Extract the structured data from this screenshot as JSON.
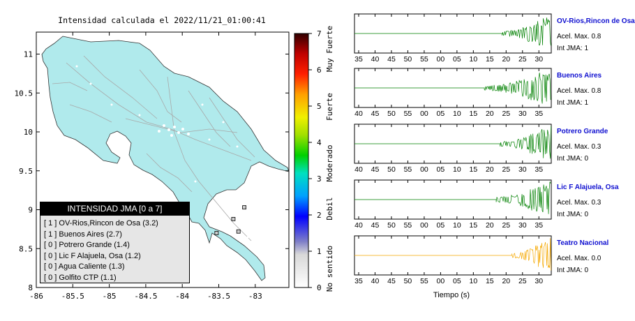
{
  "map": {
    "title": "Intensidad calculada el 2022/11/21_01:00:41",
    "x_ticks": [
      "-86",
      "-85.5",
      "-85",
      "-84.5",
      "-84",
      "-83.5",
      "-83"
    ],
    "y_ticks": [
      "11",
      "10.5",
      "10",
      "9.5",
      "9",
      "8.5",
      "8"
    ],
    "land_color": "#b0eaec",
    "stations": [
      {
        "lon": -83.3,
        "lat": 8.88
      },
      {
        "lon": -83.15,
        "lat": 9.03
      },
      {
        "lon": -83.23,
        "lat": 8.72
      },
      {
        "lon": -83.53,
        "lat": 8.7
      }
    ]
  },
  "colorbar": {
    "ticks": [
      "0",
      "1",
      "2",
      "3",
      "4",
      "5",
      "6",
      "7"
    ],
    "labels": [
      "No sentido",
      "Debil",
      "Moderado",
      "Fuerte",
      "Muy Fuerte"
    ]
  },
  "legend": {
    "header": "INTENSIDAD JMA [0 a 7]",
    "rows": [
      "[ 1 ]  OV-Rios,Rincon de Osa (3.2)",
      "[ 1 ]  Buenos Aires (2.7)",
      "[ 0 ]  Potrero Grande (1.4)",
      "[ 0 ]  Lic F Alajuela, Osa (1.2)",
      "[ 0 ]  Agua Caliente (1.3)",
      "[ 0 ]  Golfito CTP (1.1)"
    ]
  },
  "chart_data": [
    {
      "type": "line",
      "title": "OV-Rios,Rincon de Osa",
      "acel": "Acel. Max. 0.8",
      "int": "Int JMA: 1",
      "color": "#008000",
      "x_tick_labels": [
        "35",
        "40",
        "45",
        "50",
        "55",
        "00",
        "05",
        "10",
        "15",
        "20",
        "25",
        "30"
      ],
      "onset": 0.75
    },
    {
      "type": "line",
      "title": "Buenos Aires",
      "acel": "Acel. Max. 0.8",
      "int": "Int JMA: 1",
      "color": "#008000",
      "x_tick_labels": [
        "40",
        "45",
        "50",
        "55",
        "00",
        "05",
        "10",
        "15",
        "20",
        "25",
        "30",
        "35"
      ],
      "onset": 0.66
    },
    {
      "type": "line",
      "title": "Potrero Grande",
      "acel": "Acel. Max. 0.3",
      "int": "Int JMA: 0",
      "color": "#008000",
      "x_tick_labels": [
        "40",
        "45",
        "50",
        "55",
        "00",
        "05",
        "10",
        "15",
        "20",
        "25",
        "30",
        "35"
      ],
      "onset": 0.74
    },
    {
      "type": "line",
      "title": "Lic F Alajuela, Osa",
      "acel": "Acel. Max. 0.3",
      "int": "Int JMA: 0",
      "color": "#008000",
      "x_tick_labels": [
        "40",
        "45",
        "50",
        "55",
        "00",
        "05",
        "10",
        "15",
        "20",
        "25",
        "30",
        "35"
      ],
      "onset": 0.72
    },
    {
      "type": "line",
      "title": "Teatro Nacional",
      "acel": "Acel. Max. 0.0",
      "int": "Int JMA: 0",
      "color": "#f5a800",
      "x_tick_labels": [
        "35",
        "40",
        "45",
        "50",
        "55",
        "00",
        "05",
        "10",
        "15",
        "20",
        "25",
        "30"
      ],
      "onset": 0.8,
      "xlabel": "Tiempo (s)"
    }
  ]
}
